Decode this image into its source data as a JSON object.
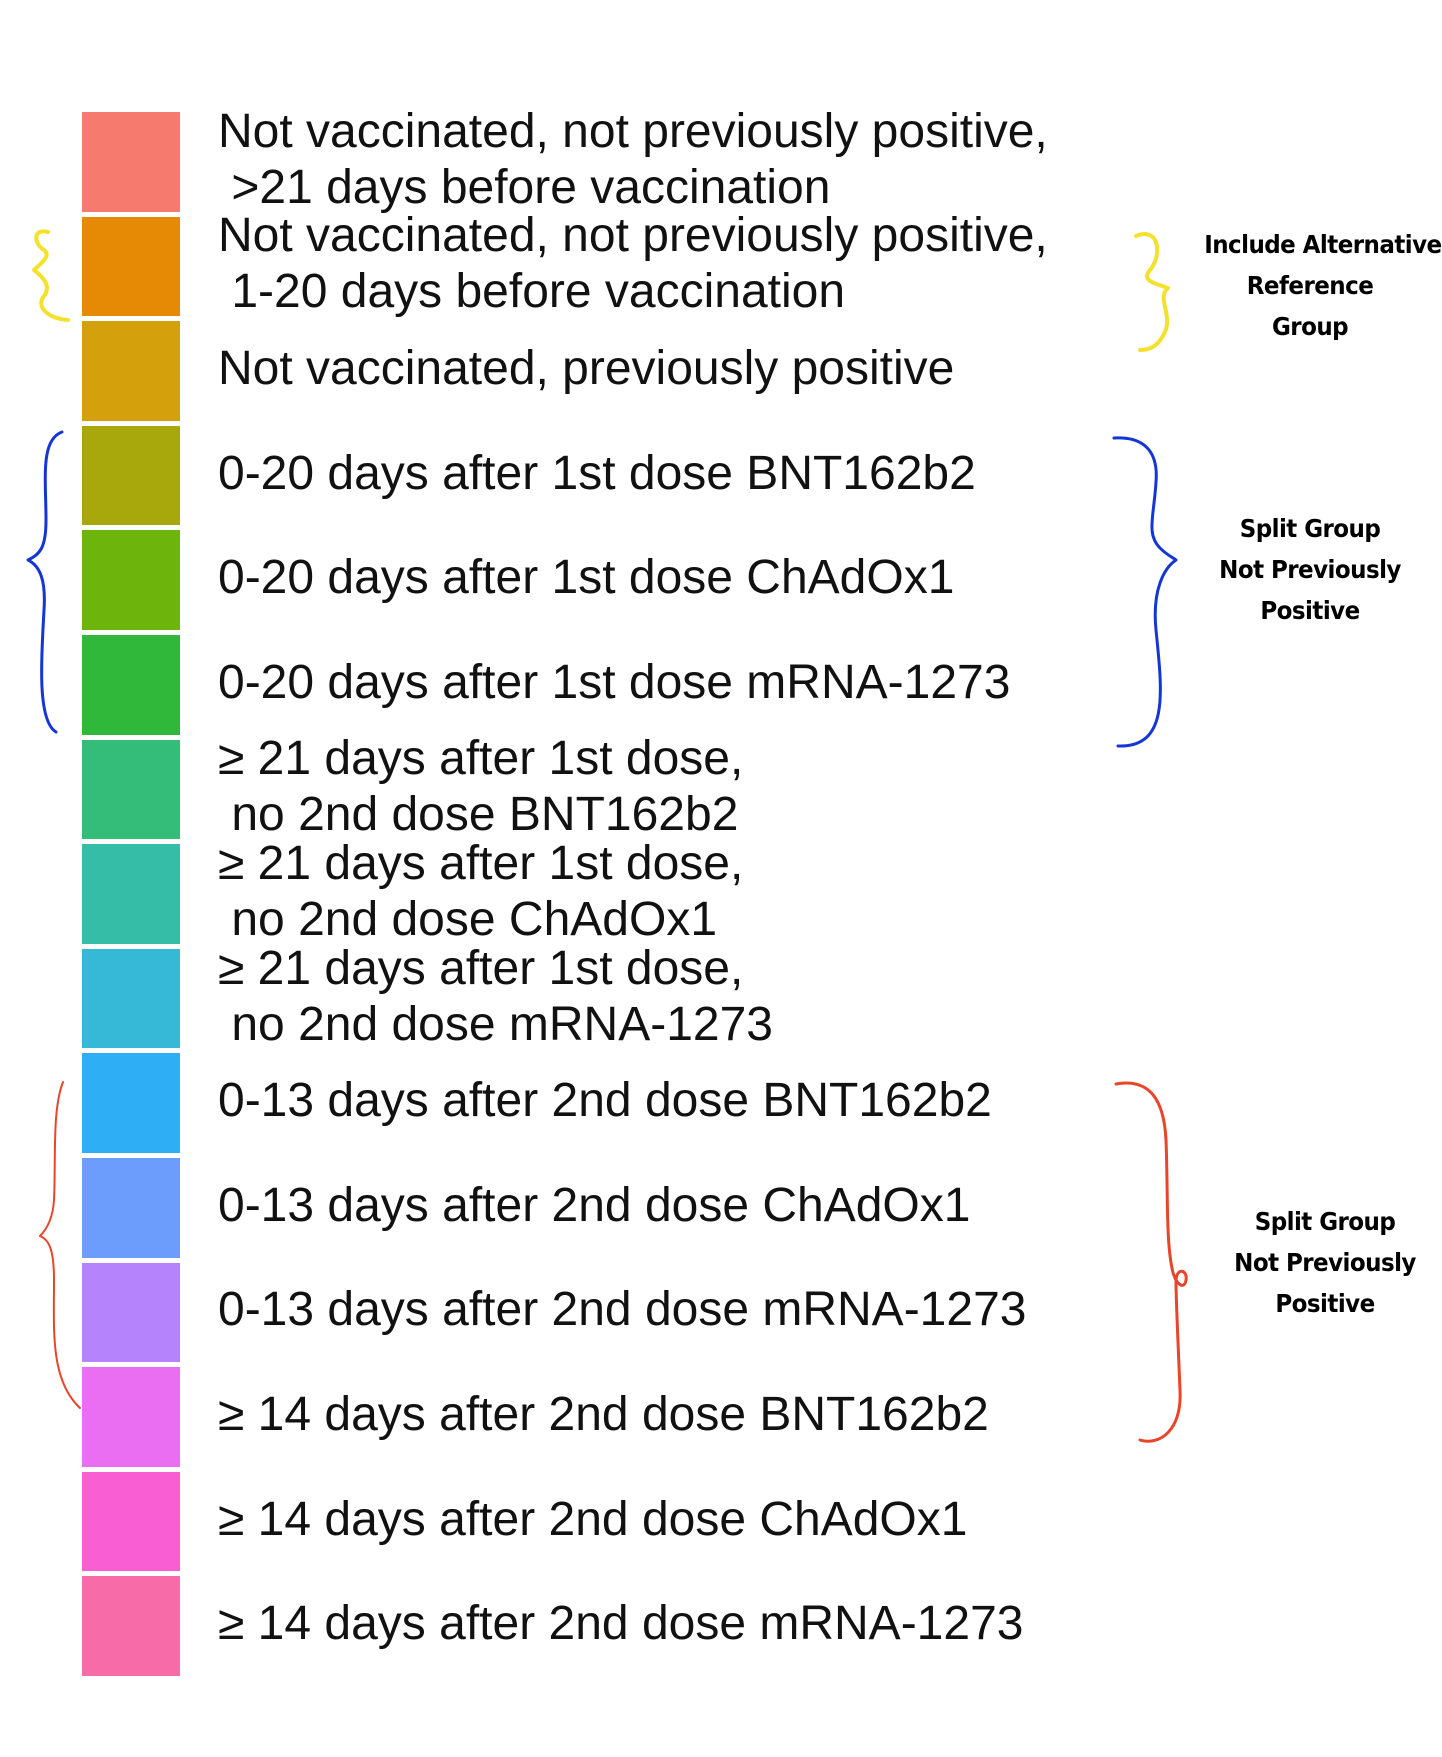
{
  "legend": {
    "items": [
      {
        "lines": [
          "Not vaccinated, not previously positive,",
          " >21 days before vaccination"
        ],
        "color": "#f77a6f"
      },
      {
        "lines": [
          "Not vaccinated, not previously positive,",
          " 1-20 days before vaccination"
        ],
        "color": "#e68a05"
      },
      {
        "lines": [
          "Not vaccinated, previously positive"
        ],
        "color": "#d4a00c"
      },
      {
        "lines": [
          "0-20 days after 1st dose BNT162b2"
        ],
        "color": "#a8a80c"
      },
      {
        "lines": [
          "0-20 days after 1st dose ChAdOx1"
        ],
        "color": "#6db40c"
      },
      {
        "lines": [
          "0-20 days after 1st dose mRNA-1273"
        ],
        "color": "#2fb83a"
      },
      {
        "lines": [
          "≥ 21 days after 1st dose,",
          " no 2nd dose BNT162b2"
        ],
        "color": "#34bd78"
      },
      {
        "lines": [
          "≥ 21 days after 1st dose,",
          " no 2nd dose ChAdOx1"
        ],
        "color": "#35bda8"
      },
      {
        "lines": [
          "≥ 21 days after 1st dose,",
          " no 2nd dose mRNA-1273"
        ],
        "color": "#35b9d6"
      },
      {
        "lines": [
          "0-13 days after 2nd dose BNT162b2"
        ],
        "color": "#2eaef4"
      },
      {
        "lines": [
          "0-13 days after 2nd dose ChAdOx1"
        ],
        "color": "#6d9dfc"
      },
      {
        "lines": [
          "0-13 days after 2nd dose mRNA-1273"
        ],
        "color": "#b583fc"
      },
      {
        "lines": [
          "≥ 14 days after 2nd dose BNT162b2"
        ],
        "color": "#ea6ef2"
      },
      {
        "lines": [
          "≥ 14 days after 2nd dose ChAdOx1"
        ],
        "color": "#f95fd3"
      },
      {
        "lines": [
          "≥ 14 days after 2nd dose mRNA-1273"
        ],
        "color": "#f86ba9"
      }
    ]
  },
  "annotations": {
    "alt_reference": {
      "lines": [
        "Include Alternative",
        "Reference",
        "Group"
      ],
      "color": "#f3e12e"
    },
    "split_first_dose": {
      "lines": [
        "Split Group",
        "Not Previously",
        "Positive"
      ],
      "color": "#1536d6"
    },
    "split_second_dose": {
      "lines": [
        "Split Group",
        "Not Previously",
        "Positive"
      ],
      "color": "#e8452a"
    }
  }
}
